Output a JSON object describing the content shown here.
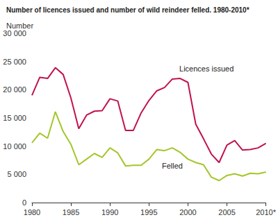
{
  "chart_data": {
    "type": "line",
    "title": "Number of licences issued and number of wild reindeer felled. 1980-2010*",
    "y_label": "Number",
    "x": [
      1980,
      1981,
      1982,
      1983,
      1984,
      1985,
      1986,
      1987,
      1988,
      1989,
      1990,
      1991,
      1992,
      1993,
      1994,
      1995,
      1996,
      1997,
      1998,
      1999,
      2000,
      2001,
      2002,
      2003,
      2004,
      2005,
      2006,
      2007,
      2008,
      2009,
      2010
    ],
    "series": [
      {
        "name": "Licences issued",
        "color": "#c0134a",
        "values": [
          19000,
          22200,
          22000,
          23900,
          22700,
          18500,
          13100,
          15500,
          16200,
          16300,
          18400,
          18000,
          12800,
          12800,
          15900,
          18100,
          19800,
          20400,
          21900,
          22000,
          21300,
          13900,
          11300,
          8600,
          7100,
          10200,
          11000,
          9300,
          9400,
          9700,
          10500
        ]
      },
      {
        "name": "Felled",
        "color": "#a3c62a",
        "values": [
          10600,
          12300,
          11400,
          16100,
          12600,
          10300,
          6700,
          7700,
          8700,
          8000,
          9700,
          8800,
          6500,
          6600,
          6600,
          7700,
          9400,
          9200,
          9700,
          8900,
          7700,
          7100,
          6700,
          4500,
          3900,
          4800,
          5100,
          4700,
          5200,
          5100,
          5400
        ]
      }
    ],
    "xlim": [
      1980,
      2010
    ],
    "xticks": [
      1980,
      1985,
      1990,
      1995,
      2000,
      2005,
      {
        "value": 2010,
        "label": "2010*"
      }
    ],
    "ylim": [
      0,
      30000
    ],
    "yticks": [
      0,
      {
        "value": 5000,
        "label": "5 000"
      },
      {
        "value": 10000,
        "label": "10 000"
      },
      {
        "value": 15000,
        "label": "15 000"
      },
      {
        "value": 20000,
        "label": "20 000"
      },
      {
        "value": 25000,
        "label": "25 000"
      },
      {
        "value": 30000,
        "label": "30 000"
      }
    ],
    "grid": false
  }
}
